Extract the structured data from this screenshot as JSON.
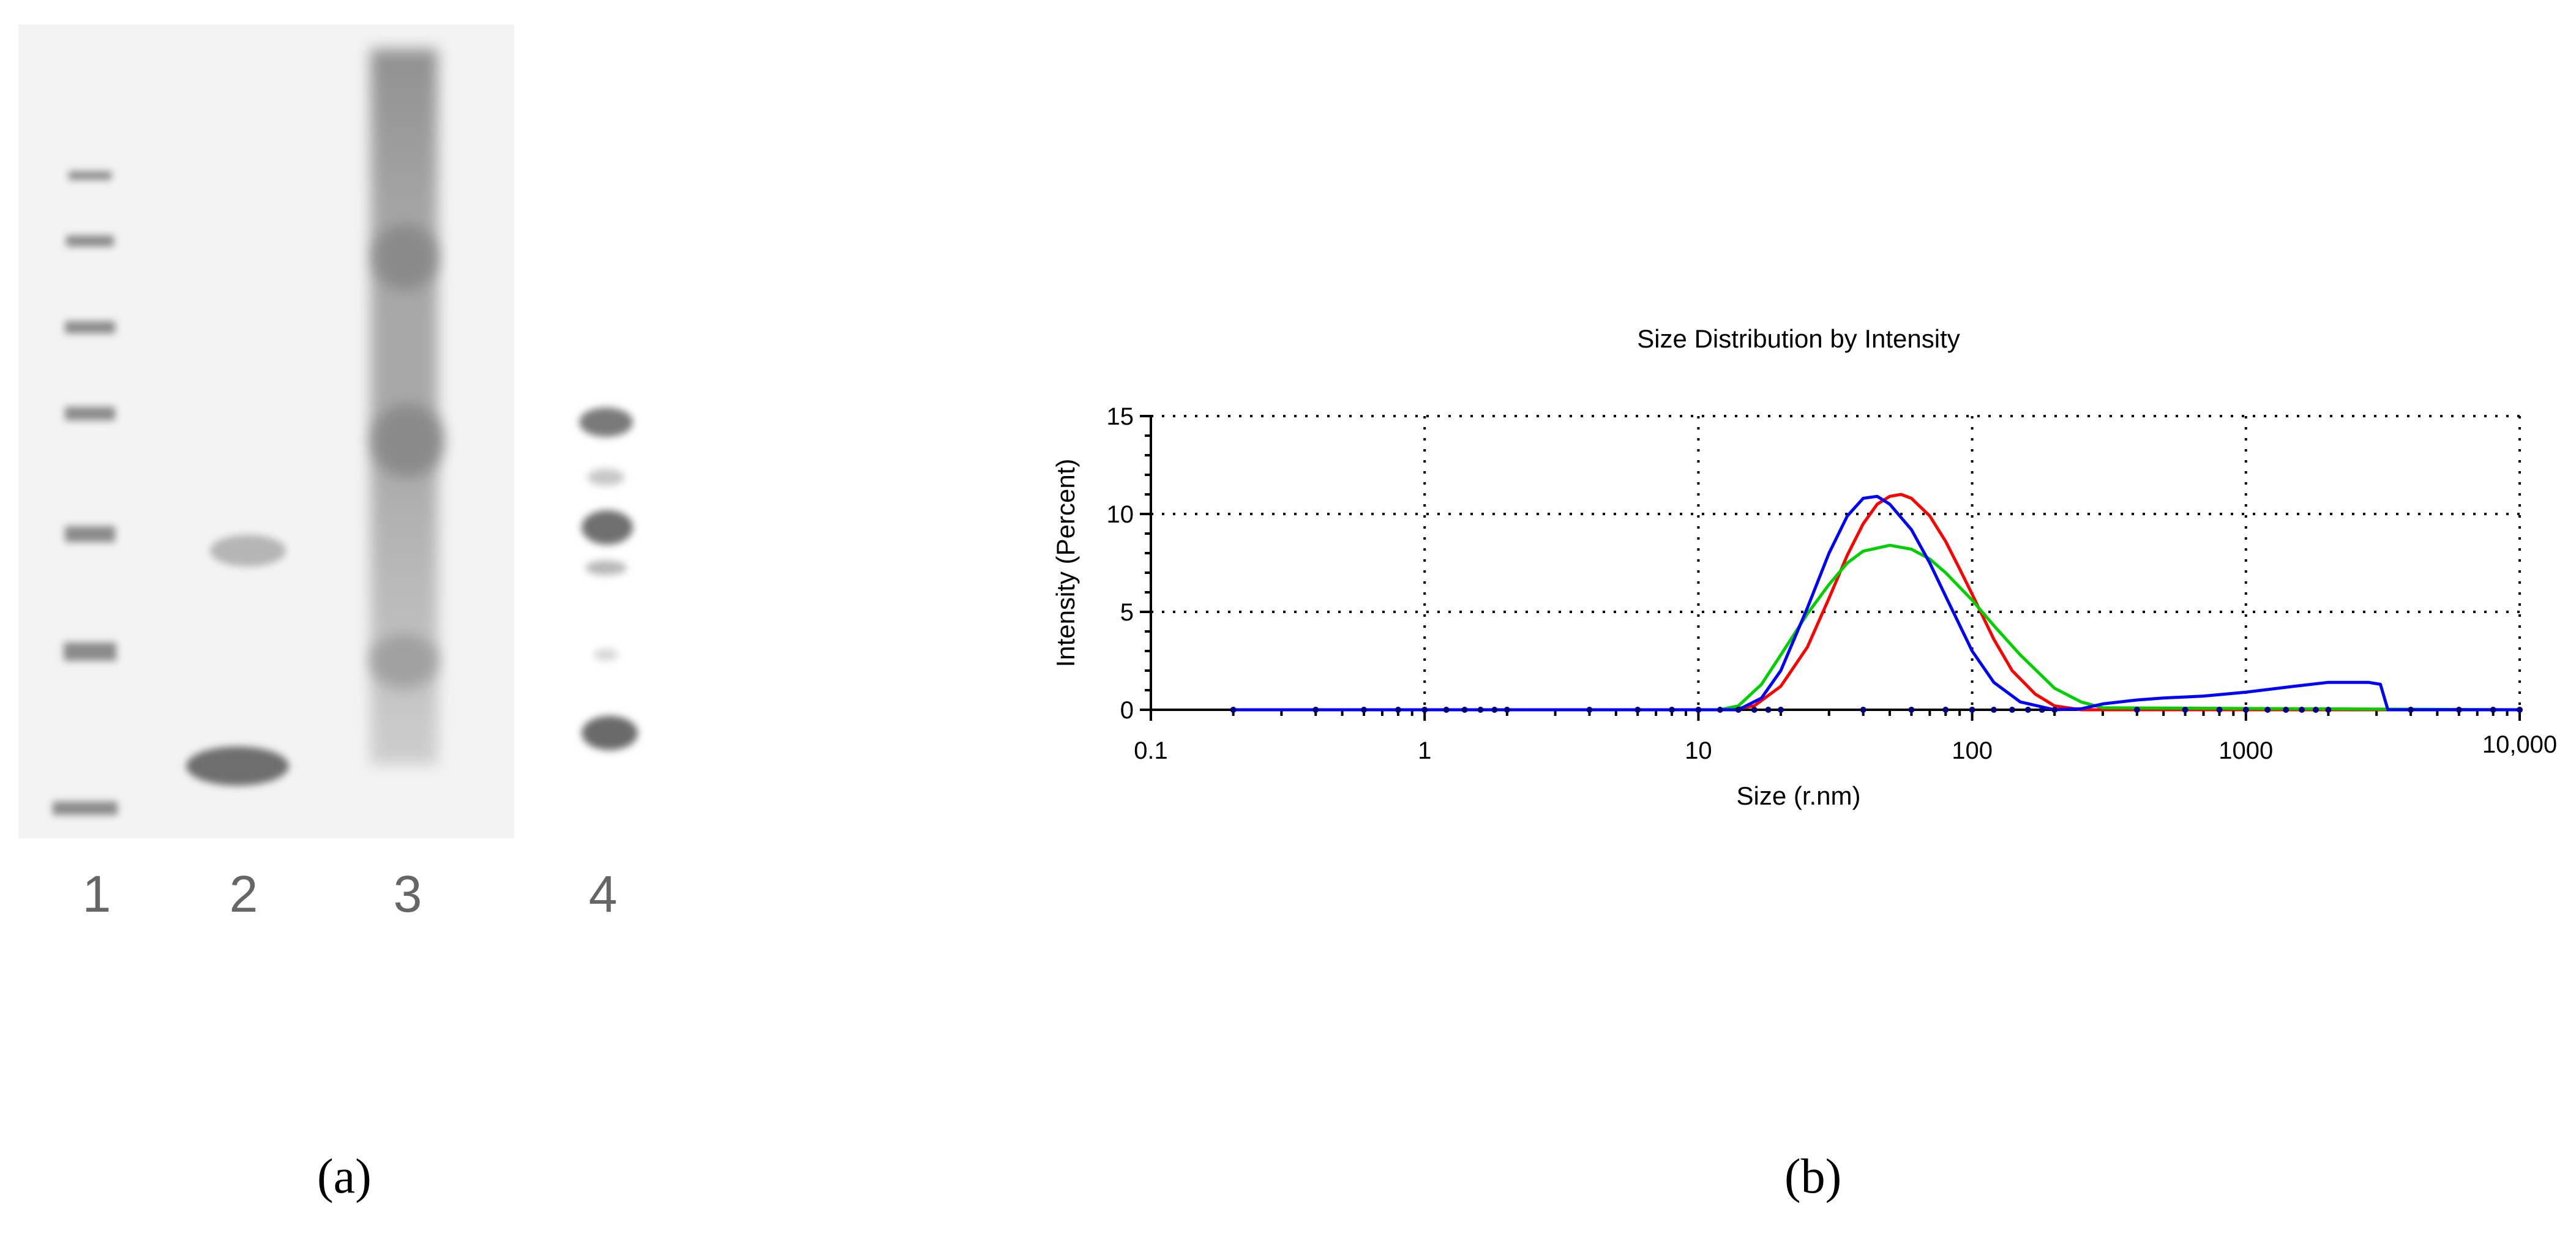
{
  "panel_a": {
    "label": "(a)",
    "lanes": [
      "1",
      "2",
      "3",
      "4"
    ]
  },
  "panel_b": {
    "label": "(b)"
  },
  "chart_data": {
    "type": "line",
    "title": "Size Distribution by Intensity",
    "xlabel": "Size (r.nm)",
    "ylabel": "Intensity (Percent)",
    "xscale": "log",
    "xlim": [
      0.1,
      10000
    ],
    "ylim": [
      0,
      15
    ],
    "x_ticks": [
      0.1,
      1,
      10,
      100,
      1000,
      10000
    ],
    "x_tick_labels": [
      "0.1",
      "1",
      "10",
      "100",
      "1000",
      "10,000"
    ],
    "y_ticks": [
      0,
      5,
      10,
      15
    ],
    "y_tick_labels": [
      "0",
      "5",
      "10",
      "15"
    ],
    "grid": true,
    "series": [
      {
        "color": "#ff0000",
        "x": [
          0.2,
          13,
          16,
          20,
          25,
          30,
          35,
          40,
          45,
          50,
          55,
          60,
          70,
          80,
          90,
          100,
          120,
          140,
          170,
          200,
          250,
          300,
          10000
        ],
        "y": [
          0,
          0,
          0.2,
          1.2,
          3.2,
          5.7,
          7.9,
          9.5,
          10.5,
          10.9,
          11.0,
          10.8,
          9.9,
          8.6,
          7.2,
          5.9,
          3.6,
          2.0,
          0.8,
          0.2,
          0,
          0,
          0
        ]
      },
      {
        "color": "#00d000",
        "x": [
          0.2,
          12,
          14,
          17,
          20,
          25,
          30,
          35,
          40,
          50,
          60,
          70,
          80,
          100,
          120,
          150,
          200,
          250,
          300,
          10000
        ],
        "y": [
          0,
          0,
          0.2,
          1.3,
          2.8,
          4.9,
          6.4,
          7.5,
          8.1,
          8.4,
          8.2,
          7.7,
          7.0,
          5.6,
          4.3,
          2.8,
          1.1,
          0.4,
          0.1,
          0
        ]
      },
      {
        "color": "#0000ff",
        "x": [
          0.2,
          14,
          17,
          20,
          25,
          30,
          35,
          40,
          45,
          50,
          60,
          70,
          80,
          100,
          120,
          150,
          200,
          250,
          300,
          400,
          500,
          700,
          1000,
          1500,
          2000,
          2500,
          2800,
          3100,
          3300,
          10000
        ],
        "y": [
          0,
          0,
          0.6,
          2.0,
          5.2,
          8.0,
          9.9,
          10.8,
          10.9,
          10.5,
          9.2,
          7.5,
          5.8,
          3.0,
          1.4,
          0.4,
          0,
          0.05,
          0.3,
          0.5,
          0.6,
          0.7,
          0.9,
          1.2,
          1.4,
          1.4,
          1.4,
          1.3,
          0,
          0
        ]
      }
    ]
  }
}
